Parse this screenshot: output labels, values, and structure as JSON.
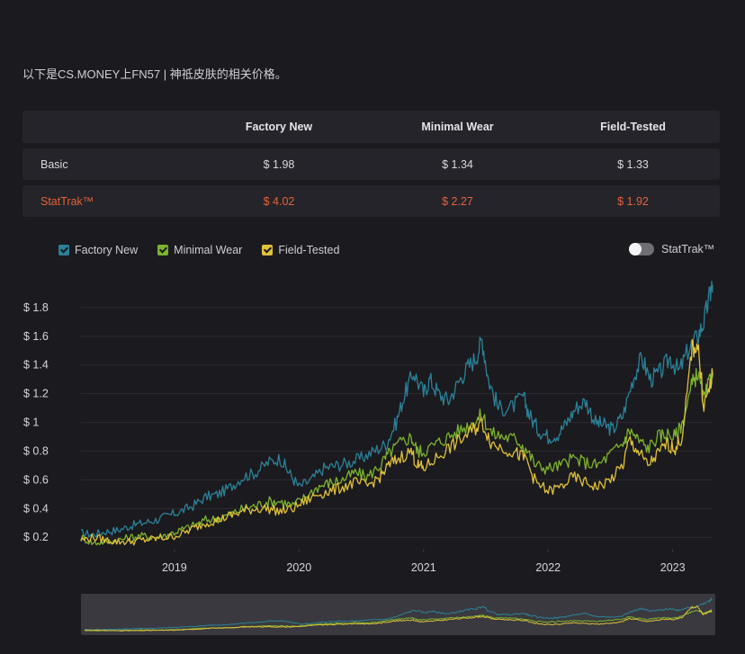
{
  "intro_text": "以下是CS.MONEY上FN57 | 神祗皮肤的相关价格。",
  "price_table": {
    "columns": [
      "",
      "Factory New",
      "Minimal Wear",
      "Field-Tested"
    ],
    "rows": [
      {
        "label": "Basic",
        "values": [
          "$ 1.98",
          "$ 1.34",
          "$ 1.33"
        ]
      },
      {
        "label": "StatTrak™",
        "values": [
          "$ 4.02",
          "$ 2.27",
          "$ 1.92"
        ]
      }
    ]
  },
  "legend": [
    {
      "label": "Factory New",
      "color": "#2b8199"
    },
    {
      "label": "Minimal Wear",
      "color": "#7db32e"
    },
    {
      "label": "Field-Tested",
      "color": "#e0c13a"
    }
  ],
  "stattrak_toggle": {
    "label": "StatTrak™",
    "on": false
  },
  "chart_data": {
    "type": "line",
    "x_ticks": [
      "2019",
      "2020",
      "2021",
      "2022",
      "2023"
    ],
    "y_ticks": [
      "$ 0.2",
      "$ 0.4",
      "$ 0.6",
      "$ 0.8",
      "$ 1",
      "$ 1.2",
      "$ 1.4",
      "$ 1.6",
      "$ 1.8"
    ],
    "xlim": [
      2018.25,
      2023.32
    ],
    "ylim": [
      0.12,
      2.0
    ],
    "grid": true,
    "legend_position": "top-left",
    "series": [
      {
        "name": "Factory New",
        "color": "#2b8199",
        "points": [
          [
            2018.25,
            0.23
          ],
          [
            2018.35,
            0.22
          ],
          [
            2018.45,
            0.24
          ],
          [
            2018.55,
            0.25
          ],
          [
            2018.65,
            0.28
          ],
          [
            2018.75,
            0.3
          ],
          [
            2018.85,
            0.32
          ],
          [
            2018.95,
            0.35
          ],
          [
            2019.05,
            0.38
          ],
          [
            2019.15,
            0.42
          ],
          [
            2019.25,
            0.48
          ],
          [
            2019.35,
            0.5
          ],
          [
            2019.45,
            0.55
          ],
          [
            2019.55,
            0.62
          ],
          [
            2019.65,
            0.65
          ],
          [
            2019.75,
            0.72
          ],
          [
            2019.85,
            0.75
          ],
          [
            2019.92,
            0.65
          ],
          [
            2020.0,
            0.55
          ],
          [
            2020.1,
            0.6
          ],
          [
            2020.2,
            0.68
          ],
          [
            2020.3,
            0.7
          ],
          [
            2020.4,
            0.72
          ],
          [
            2020.5,
            0.75
          ],
          [
            2020.6,
            0.8
          ],
          [
            2020.7,
            0.85
          ],
          [
            2020.78,
            1.0
          ],
          [
            2020.85,
            1.2
          ],
          [
            2020.92,
            1.35
          ],
          [
            2021.0,
            1.2
          ],
          [
            2021.05,
            1.3
          ],
          [
            2021.12,
            1.2
          ],
          [
            2021.2,
            1.15
          ],
          [
            2021.28,
            1.28
          ],
          [
            2021.35,
            1.38
          ],
          [
            2021.42,
            1.45
          ],
          [
            2021.47,
            1.58
          ],
          [
            2021.52,
            1.3
          ],
          [
            2021.6,
            1.1
          ],
          [
            2021.7,
            1.1
          ],
          [
            2021.8,
            1.18
          ],
          [
            2021.85,
            1.05
          ],
          [
            2021.92,
            0.95
          ],
          [
            2022.0,
            0.9
          ],
          [
            2022.08,
            0.92
          ],
          [
            2022.15,
            1.0
          ],
          [
            2022.22,
            1.1
          ],
          [
            2022.3,
            1.15
          ],
          [
            2022.38,
            1.0
          ],
          [
            2022.45,
            0.98
          ],
          [
            2022.52,
            0.95
          ],
          [
            2022.6,
            1.05
          ],
          [
            2022.68,
            1.3
          ],
          [
            2022.75,
            1.45
          ],
          [
            2022.82,
            1.3
          ],
          [
            2022.9,
            1.35
          ],
          [
            2022.98,
            1.45
          ],
          [
            2023.05,
            1.35
          ],
          [
            2023.12,
            1.5
          ],
          [
            2023.2,
            1.6
          ],
          [
            2023.25,
            1.7
          ],
          [
            2023.3,
            1.9
          ],
          [
            2023.32,
            1.96
          ]
        ]
      },
      {
        "name": "Minimal Wear",
        "color": "#7db32e",
        "points": [
          [
            2018.25,
            0.2
          ],
          [
            2018.35,
            0.16
          ],
          [
            2018.45,
            0.17
          ],
          [
            2018.55,
            0.18
          ],
          [
            2018.65,
            0.2
          ],
          [
            2018.75,
            0.21
          ],
          [
            2018.85,
            0.2
          ],
          [
            2018.95,
            0.22
          ],
          [
            2019.05,
            0.25
          ],
          [
            2019.15,
            0.28
          ],
          [
            2019.25,
            0.32
          ],
          [
            2019.35,
            0.33
          ],
          [
            2019.45,
            0.36
          ],
          [
            2019.55,
            0.4
          ],
          [
            2019.65,
            0.42
          ],
          [
            2019.75,
            0.45
          ],
          [
            2019.85,
            0.45
          ],
          [
            2019.95,
            0.42
          ],
          [
            2020.05,
            0.48
          ],
          [
            2020.15,
            0.55
          ],
          [
            2020.25,
            0.58
          ],
          [
            2020.35,
            0.6
          ],
          [
            2020.45,
            0.65
          ],
          [
            2020.55,
            0.62
          ],
          [
            2020.65,
            0.7
          ],
          [
            2020.72,
            0.78
          ],
          [
            2020.8,
            0.85
          ],
          [
            2020.9,
            0.9
          ],
          [
            2020.95,
            0.8
          ],
          [
            2021.0,
            0.8
          ],
          [
            2021.1,
            0.85
          ],
          [
            2021.2,
            0.9
          ],
          [
            2021.3,
            0.95
          ],
          [
            2021.4,
            1.0
          ],
          [
            2021.47,
            1.05
          ],
          [
            2021.55,
            0.92
          ],
          [
            2021.65,
            0.9
          ],
          [
            2021.75,
            0.88
          ],
          [
            2021.82,
            0.82
          ],
          [
            2021.9,
            0.7
          ],
          [
            2022.0,
            0.68
          ],
          [
            2022.1,
            0.7
          ],
          [
            2022.2,
            0.75
          ],
          [
            2022.3,
            0.72
          ],
          [
            2022.4,
            0.7
          ],
          [
            2022.5,
            0.78
          ],
          [
            2022.6,
            0.85
          ],
          [
            2022.65,
            0.95
          ],
          [
            2022.72,
            0.88
          ],
          [
            2022.8,
            0.82
          ],
          [
            2022.88,
            0.9
          ],
          [
            2022.95,
            0.92
          ],
          [
            2023.02,
            0.9
          ],
          [
            2023.08,
            1.0
          ],
          [
            2023.15,
            1.25
          ],
          [
            2023.2,
            1.35
          ],
          [
            2023.25,
            1.15
          ],
          [
            2023.3,
            1.3
          ],
          [
            2023.32,
            1.33
          ]
        ]
      },
      {
        "name": "Field-Tested",
        "color": "#e0c13a",
        "points": [
          [
            2018.25,
            0.18
          ],
          [
            2018.35,
            0.2
          ],
          [
            2018.45,
            0.18
          ],
          [
            2018.55,
            0.17
          ],
          [
            2018.65,
            0.17
          ],
          [
            2018.75,
            0.18
          ],
          [
            2018.85,
            0.19
          ],
          [
            2018.95,
            0.2
          ],
          [
            2019.05,
            0.22
          ],
          [
            2019.15,
            0.26
          ],
          [
            2019.25,
            0.3
          ],
          [
            2019.35,
            0.32
          ],
          [
            2019.45,
            0.35
          ],
          [
            2019.55,
            0.38
          ],
          [
            2019.65,
            0.4
          ],
          [
            2019.75,
            0.4
          ],
          [
            2019.85,
            0.38
          ],
          [
            2019.95,
            0.4
          ],
          [
            2020.05,
            0.45
          ],
          [
            2020.15,
            0.5
          ],
          [
            2020.25,
            0.52
          ],
          [
            2020.35,
            0.55
          ],
          [
            2020.45,
            0.58
          ],
          [
            2020.55,
            0.56
          ],
          [
            2020.65,
            0.62
          ],
          [
            2020.72,
            0.7
          ],
          [
            2020.8,
            0.75
          ],
          [
            2020.9,
            0.8
          ],
          [
            2020.95,
            0.7
          ],
          [
            2021.0,
            0.68
          ],
          [
            2021.1,
            0.75
          ],
          [
            2021.2,
            0.82
          ],
          [
            2021.3,
            0.88
          ],
          [
            2021.4,
            0.95
          ],
          [
            2021.47,
            1.0
          ],
          [
            2021.55,
            0.85
          ],
          [
            2021.65,
            0.82
          ],
          [
            2021.75,
            0.78
          ],
          [
            2021.82,
            0.75
          ],
          [
            2021.9,
            0.58
          ],
          [
            2022.0,
            0.52
          ],
          [
            2022.1,
            0.55
          ],
          [
            2022.2,
            0.62
          ],
          [
            2022.3,
            0.58
          ],
          [
            2022.4,
            0.55
          ],
          [
            2022.5,
            0.6
          ],
          [
            2022.6,
            0.7
          ],
          [
            2022.65,
            0.88
          ],
          [
            2022.72,
            0.8
          ],
          [
            2022.8,
            0.7
          ],
          [
            2022.88,
            0.78
          ],
          [
            2022.95,
            0.85
          ],
          [
            2023.02,
            0.82
          ],
          [
            2023.08,
            0.9
          ],
          [
            2023.15,
            1.5
          ],
          [
            2023.2,
            1.55
          ],
          [
            2023.25,
            1.12
          ],
          [
            2023.3,
            1.25
          ],
          [
            2023.32,
            1.33
          ]
        ]
      }
    ]
  }
}
